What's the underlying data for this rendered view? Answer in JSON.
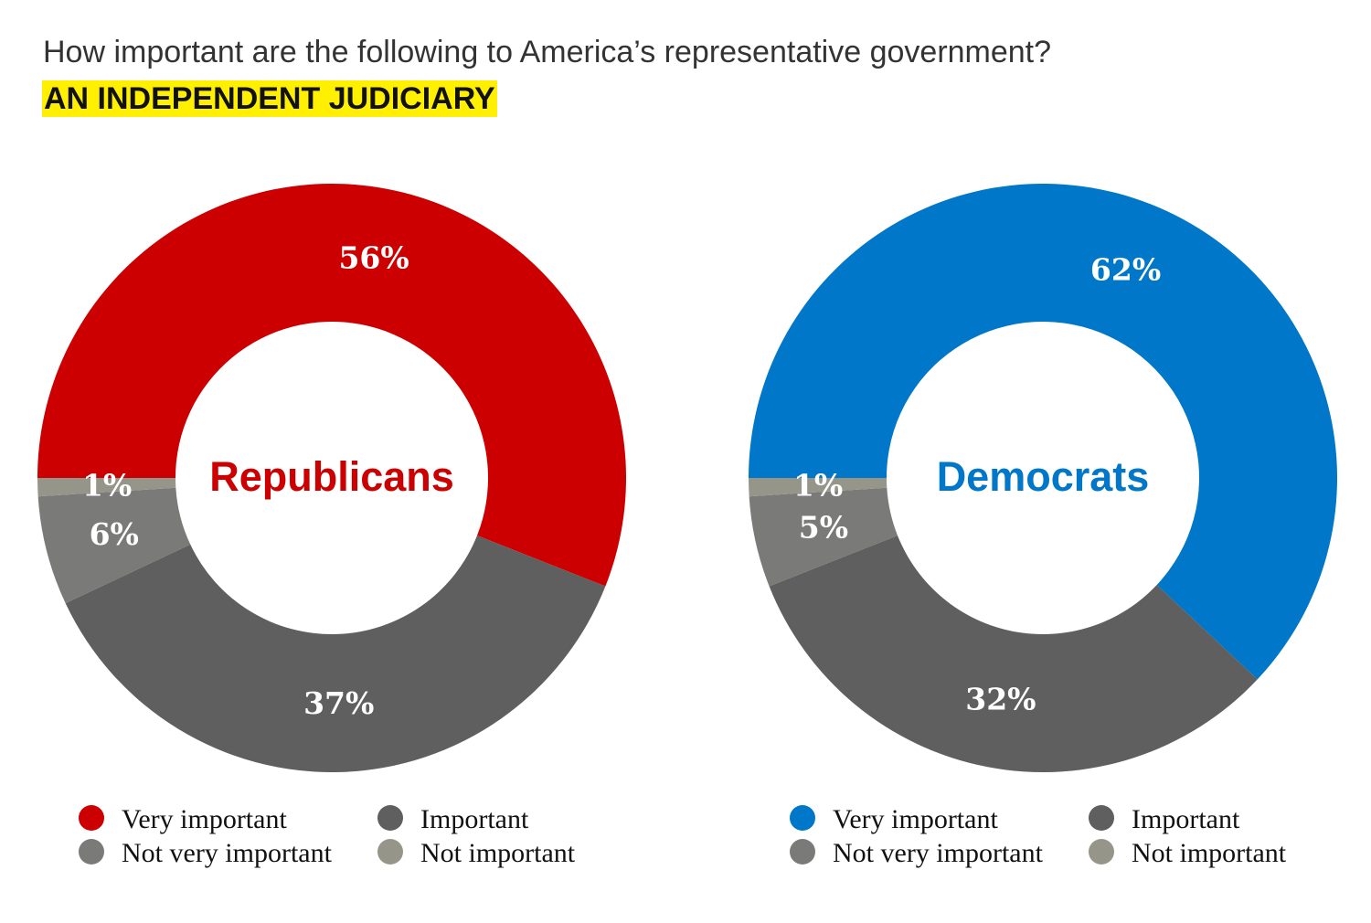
{
  "title": "How important are the following to America’s representative government?",
  "subtitle": "AN INDEPENDENT JUDICIARY",
  "chart_data": [
    {
      "type": "pie",
      "donut": true,
      "center_label": "Republicans",
      "accent": "#cc0000",
      "categories": [
        "Very important",
        "Important",
        "Not very important",
        "Not important"
      ],
      "values": [
        56,
        37,
        6,
        1
      ],
      "labels": [
        "56%",
        "37%",
        "6%",
        "1%"
      ],
      "colors": [
        "#cc0000",
        "#5f5f5f",
        "#7a7a78",
        "#95958a"
      ],
      "start": "9 o'clock, clockwise",
      "legend": "bottom"
    },
    {
      "type": "pie",
      "donut": true,
      "center_label": "Democrats",
      "accent": "#0077c8",
      "categories": [
        "Very important",
        "Important",
        "Not very important",
        "Not important"
      ],
      "values": [
        62,
        32,
        5,
        1
      ],
      "labels": [
        "62%",
        "32%",
        "5%",
        "1%"
      ],
      "colors": [
        "#0077c8",
        "#5f5f5f",
        "#7a7a78",
        "#95958a"
      ],
      "start": "9 o'clock, clockwise",
      "legend": "bottom"
    }
  ]
}
